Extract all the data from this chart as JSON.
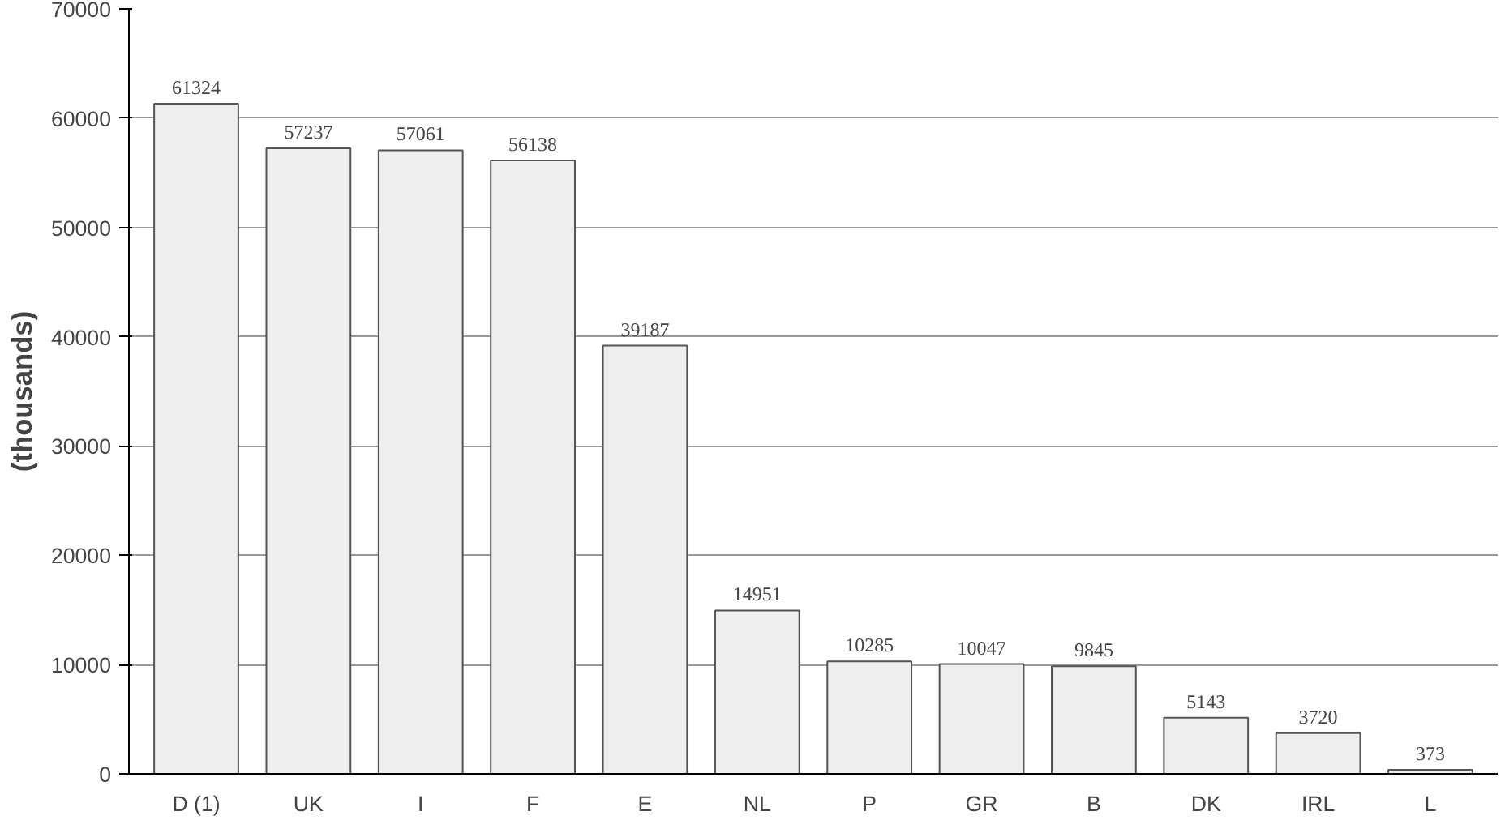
{
  "chart_data": {
    "type": "bar",
    "ylabel": "(thousands)",
    "categories": [
      "D (1)",
      "UK",
      "I",
      "F",
      "E",
      "NL",
      "P",
      "GR",
      "B",
      "DK",
      "IRL",
      "L"
    ],
    "values": [
      61324,
      57237,
      57061,
      56138,
      39187,
      14951,
      10285,
      10047,
      9845,
      5143,
      3720,
      373
    ],
    "color": "#eeeeee",
    "ylim": [
      0,
      70000
    ],
    "yticks": [
      0,
      10000,
      20000,
      30000,
      40000,
      50000,
      60000,
      70000
    ],
    "grid": "y",
    "data_labels": true
  }
}
